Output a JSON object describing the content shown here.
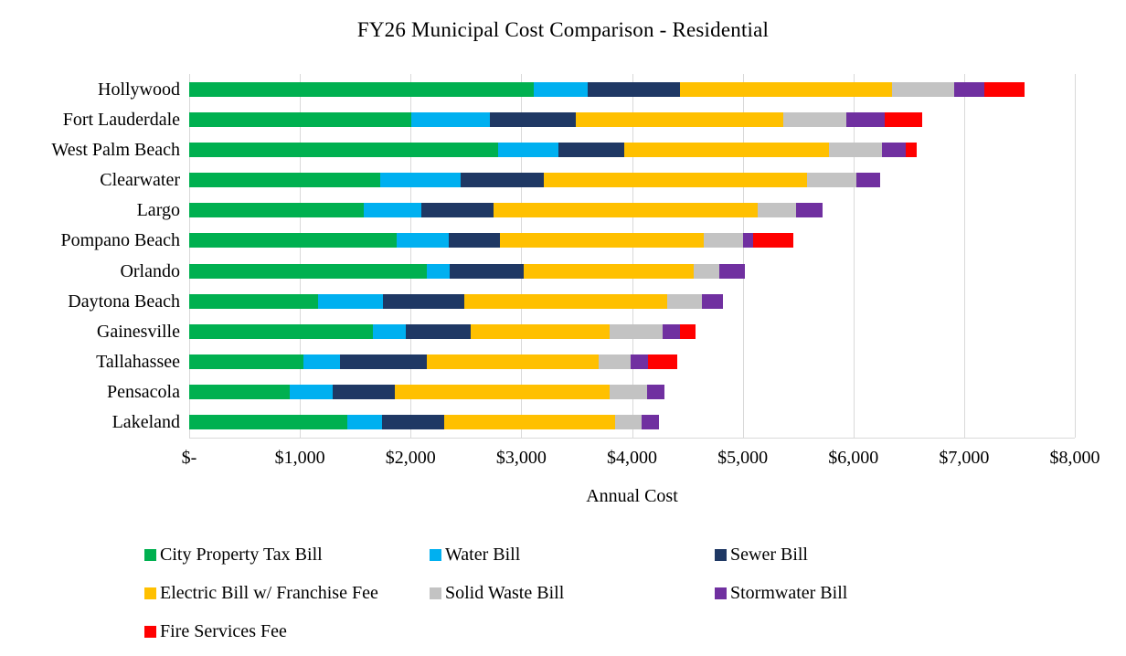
{
  "title": "FY26 Municipal Cost Comparison - Residential",
  "chart_data": {
    "type": "bar",
    "orientation": "horizontal",
    "stacked": true,
    "title": "FY26 Municipal Cost Comparison - Residential",
    "xlabel": "Annual Cost",
    "ylabel": "",
    "xlim": [
      0,
      8000
    ],
    "grid": true,
    "legend_position": "bottom",
    "x_ticks": [
      {
        "value": 0,
        "label": "$-"
      },
      {
        "value": 1000,
        "label": "$1,000"
      },
      {
        "value": 2000,
        "label": "$2,000"
      },
      {
        "value": 3000,
        "label": "$3,000"
      },
      {
        "value": 4000,
        "label": "$4,000"
      },
      {
        "value": 5000,
        "label": "$5,000"
      },
      {
        "value": 6000,
        "label": "$6,000"
      },
      {
        "value": 7000,
        "label": "$7,000"
      },
      {
        "value": 8000,
        "label": "$8,000"
      }
    ],
    "categories": [
      "Hollywood",
      "Fort Lauderdale",
      "West Palm Beach",
      "Clearwater",
      "Largo",
      "Pompano Beach",
      "Orlando",
      "Daytona Beach",
      "Gainesville",
      "Tallahassee",
      "Pensacola",
      "Lakeland"
    ],
    "series": [
      {
        "name": "City Property Tax Bill",
        "color": "#00B050",
        "values": [
          3110,
          2010,
          2790,
          1725,
          1580,
          1870,
          2150,
          1165,
          1660,
          1035,
          905,
          1430
        ]
      },
      {
        "name": "Water Bill",
        "color": "#00B0F0",
        "values": [
          490,
          710,
          545,
          725,
          520,
          475,
          200,
          585,
          300,
          325,
          395,
          310
        ]
      },
      {
        "name": "Sewer Bill",
        "color": "#1F3864",
        "values": [
          830,
          770,
          595,
          750,
          650,
          465,
          675,
          735,
          580,
          785,
          555,
          565
        ]
      },
      {
        "name": "Electric Bill w/ Franchise Fee",
        "color": "#FFC000",
        "values": [
          1920,
          1875,
          1850,
          2385,
          2385,
          1840,
          1530,
          1830,
          1260,
          1555,
          1940,
          1545
        ]
      },
      {
        "name": "Solid Waste Bill",
        "color": "#C3C3C3",
        "values": [
          560,
          570,
          480,
          440,
          350,
          350,
          235,
          320,
          475,
          285,
          340,
          235
        ]
      },
      {
        "name": "Stormwater Bill",
        "color": "#7030A0",
        "values": [
          275,
          350,
          210,
          220,
          240,
          95,
          230,
          185,
          155,
          160,
          155,
          155
        ]
      },
      {
        "name": "Fire Services Fee",
        "color": "#FF0000",
        "values": [
          360,
          340,
          105,
          0,
          0,
          360,
          0,
          0,
          145,
          260,
          0,
          0
        ]
      }
    ]
  },
  "colors": {
    "gridline": "#D9D9D9",
    "text": "#000000",
    "background": "#FFFFFF"
  }
}
